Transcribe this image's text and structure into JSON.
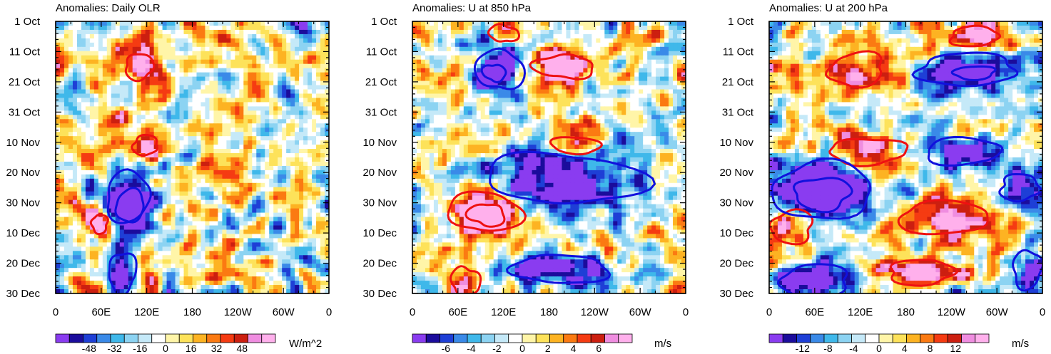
{
  "chart_data": [
    {
      "type": "heatmap",
      "title": "Anomalies: Daily OLR",
      "x_ticks": [
        "0",
        "60E",
        "120E",
        "180",
        "120W",
        "60W",
        "0"
      ],
      "y_ticks": [
        "1 Oct",
        "11 Oct",
        "21 Oct",
        "31 Oct",
        "10 Nov",
        "20 Nov",
        "30 Nov",
        "10 Dec",
        "20 Dec",
        "30 Dec"
      ],
      "xlim": [
        0,
        360
      ],
      "ylim_days": [
        0,
        90
      ],
      "colorbar": {
        "ticks": [
          "-48",
          "-32",
          "-16",
          "0",
          "16",
          "32",
          "48"
        ],
        "units": "W/m^2"
      },
      "seed": 11,
      "contours": [
        {
          "color": "red",
          "lon": 110,
          "day": 15,
          "rlon": 20,
          "rday": 4
        },
        {
          "color": "red",
          "lon": 118,
          "day": 41,
          "rlon": 18,
          "rday": 3
        },
        {
          "color": "red",
          "lon": 58,
          "day": 67,
          "rlon": 11,
          "rday": 3
        },
        {
          "color": "blue",
          "lon": 95,
          "day": 58,
          "rlon": 30,
          "rday": 8
        },
        {
          "color": "blue",
          "lon": 98,
          "day": 61,
          "rlon": 20,
          "rday": 5
        },
        {
          "color": "blue",
          "lon": 88,
          "day": 83,
          "rlon": 20,
          "rday": 6
        }
      ]
    },
    {
      "type": "heatmap",
      "title": "Anomalies: U at 850 hPa",
      "x_ticks": [
        "0",
        "60E",
        "120E",
        "180",
        "120W",
        "60W",
        "0"
      ],
      "y_ticks": [
        "1 Oct",
        "11 Oct",
        "21 Oct",
        "31 Oct",
        "10 Nov",
        "20 Nov",
        "30 Nov",
        "10 Dec",
        "20 Dec",
        "30 Dec"
      ],
      "xlim": [
        0,
        360
      ],
      "ylim_days": [
        0,
        90
      ],
      "colorbar": {
        "ticks": [
          "-6",
          "-4",
          "-2",
          "0",
          "2",
          "4",
          "6"
        ],
        "units": "m/s"
      },
      "seed": 23,
      "contours": [
        {
          "color": "red",
          "lon": 120,
          "day": 4,
          "rlon": 18,
          "rday": 3
        },
        {
          "color": "red",
          "lon": 200,
          "day": 15,
          "rlon": 38,
          "rday": 4
        },
        {
          "color": "red",
          "lon": 215,
          "day": 41,
          "rlon": 30,
          "rday": 3
        },
        {
          "color": "red",
          "lon": 95,
          "day": 63,
          "rlon": 45,
          "rday": 7
        },
        {
          "color": "red",
          "lon": 98,
          "day": 64,
          "rlon": 22,
          "rday": 4
        },
        {
          "color": "red",
          "lon": 70,
          "day": 86,
          "rlon": 18,
          "rday": 5
        },
        {
          "color": "blue",
          "lon": 115,
          "day": 16,
          "rlon": 30,
          "rday": 7
        },
        {
          "color": "blue",
          "lon": 108,
          "day": 17,
          "rlon": 14,
          "rday": 3
        },
        {
          "color": "blue",
          "lon": 200,
          "day": 52,
          "rlon": 95,
          "rday": 9
        },
        {
          "color": "blue",
          "lon": 195,
          "day": 82,
          "rlon": 60,
          "rday": 5
        }
      ]
    },
    {
      "type": "heatmap",
      "title": "Anomalies: U at 200 hPa",
      "x_ticks": [
        "0",
        "60E",
        "120E",
        "180",
        "120W",
        "60W",
        "0"
      ],
      "y_ticks": [
        "1 Oct",
        "11 Oct",
        "21 Oct",
        "31 Oct",
        "10 Nov",
        "20 Nov",
        "30 Nov",
        "10 Dec",
        "20 Dec",
        "30 Dec"
      ],
      "xlim": [
        0,
        360
      ],
      "ylim_days": [
        0,
        90
      ],
      "colorbar": {
        "ticks": [
          "-12",
          "-8",
          "-4",
          "0",
          "4",
          "8",
          "12"
        ],
        "units": "m/s"
      },
      "seed": 37,
      "contours": [
        {
          "color": "red",
          "lon": 270,
          "day": 5,
          "rlon": 35,
          "rday": 3
        },
        {
          "color": "red",
          "lon": 115,
          "day": 16,
          "rlon": 40,
          "rday": 5
        },
        {
          "color": "red",
          "lon": 130,
          "day": 43,
          "rlon": 55,
          "rday": 4
        },
        {
          "color": "red",
          "lon": 230,
          "day": 65,
          "rlon": 65,
          "rday": 5
        },
        {
          "color": "red",
          "lon": 30,
          "day": 68,
          "rlon": 30,
          "rday": 5
        },
        {
          "color": "red",
          "lon": 200,
          "day": 83,
          "rlon": 45,
          "rday": 4
        },
        {
          "color": "blue",
          "lon": 260,
          "day": 16,
          "rlon": 70,
          "rday": 5
        },
        {
          "color": "blue",
          "lon": 270,
          "day": 17,
          "rlon": 30,
          "rday": 2
        },
        {
          "color": "blue",
          "lon": 255,
          "day": 43,
          "rlon": 55,
          "rday": 4
        },
        {
          "color": "blue",
          "lon": 70,
          "day": 56,
          "rlon": 70,
          "rday": 9
        },
        {
          "color": "blue",
          "lon": 70,
          "day": 57,
          "rlon": 40,
          "rday": 5
        },
        {
          "color": "blue",
          "lon": 330,
          "day": 55,
          "rlon": 28,
          "rday": 4
        },
        {
          "color": "blue",
          "lon": 60,
          "day": 86,
          "rlon": 50,
          "rday": 5
        },
        {
          "color": "blue",
          "lon": 340,
          "day": 82,
          "rlon": 20,
          "rday": 6
        }
      ]
    }
  ],
  "colors": {
    "palette": [
      "#8a3cf0",
      "#1b0c9c",
      "#1e3fd6",
      "#3a8ae8",
      "#3fb8ea",
      "#8cd3f2",
      "#c5e9f8",
      "#ffffff",
      "#fff5a8",
      "#fde25a",
      "#fdb322",
      "#fb7a12",
      "#f53b12",
      "#cc1f10",
      "#ef8de0",
      "#ffb0ec"
    ],
    "red_contour": "#ee1111",
    "blue_contour": "#1111dd"
  }
}
